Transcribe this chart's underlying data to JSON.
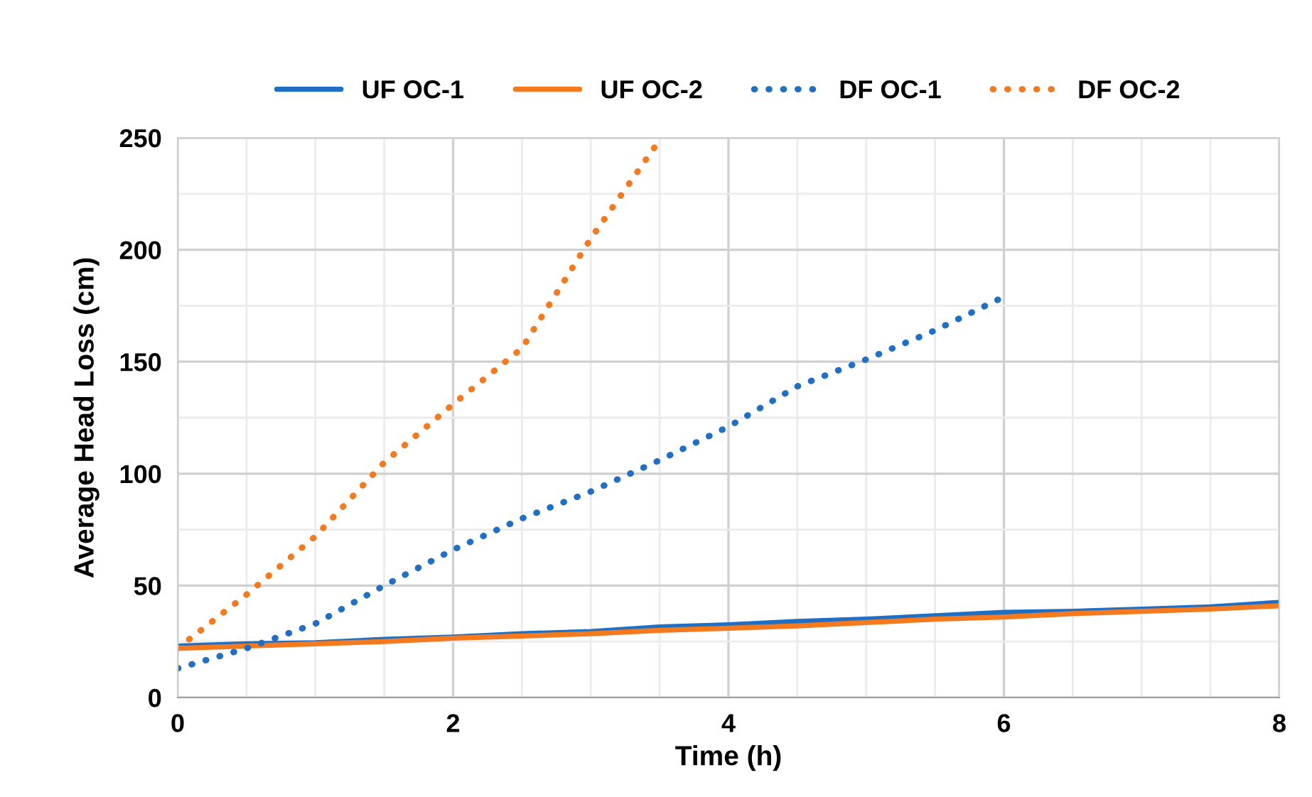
{
  "chart_data": {
    "type": "line",
    "xlabel": "Time (h)",
    "ylabel": "Average Head Loss (cm)",
    "xlim": [
      0,
      8
    ],
    "xticks": [
      0,
      2,
      4,
      6,
      8
    ],
    "ylim": [
      0,
      250
    ],
    "yticks": [
      0,
      50,
      100,
      150,
      200,
      250
    ],
    "grid": true,
    "legend": "top",
    "marker": "none",
    "series": [
      {
        "name": "UF OC-1",
        "color": "#1f6fc5",
        "line_style": "solid",
        "x": [
          0,
          0.5,
          1,
          1.5,
          2,
          2.5,
          3,
          3.5,
          4,
          4.5,
          5,
          5.5,
          6,
          6.5,
          7,
          7.5,
          8
        ],
        "values": [
          23,
          24,
          24.5,
          26,
          27,
          28.5,
          29.5,
          31.5,
          32.5,
          34,
          35,
          36.5,
          38,
          38.5,
          39.5,
          40.5,
          42.5
        ]
      },
      {
        "name": "UF OC-2",
        "color": "#f47a20",
        "line_style": "solid",
        "x": [
          0,
          0.5,
          1,
          1.5,
          2,
          2.5,
          3,
          3.5,
          4,
          4.5,
          5,
          5.5,
          6,
          6.5,
          7,
          7.5,
          8
        ],
        "values": [
          22,
          23,
          24,
          25,
          26.5,
          27.5,
          28.5,
          30,
          31,
          32,
          33.5,
          35,
          36,
          37.5,
          38.5,
          39.5,
          41
        ]
      },
      {
        "name": "DF OC-1",
        "color": "#1f6fc5",
        "line_style": "dotted",
        "x": [
          0,
          0.5,
          1,
          1.5,
          2,
          2.5,
          3,
          3.5,
          4,
          4.5,
          5,
          5.5,
          6
        ],
        "values": [
          13,
          22,
          33,
          50,
          66,
          80,
          92,
          106,
          121,
          139,
          151,
          164,
          179
        ]
      },
      {
        "name": "DF OC-2",
        "color": "#f47a20",
        "line_style": "dotted",
        "x": [
          0,
          0.5,
          1,
          1.5,
          2,
          2.5,
          3,
          3.5
        ],
        "values": [
          22,
          46,
          72,
          105,
          131,
          156,
          205,
          249
        ]
      }
    ]
  }
}
